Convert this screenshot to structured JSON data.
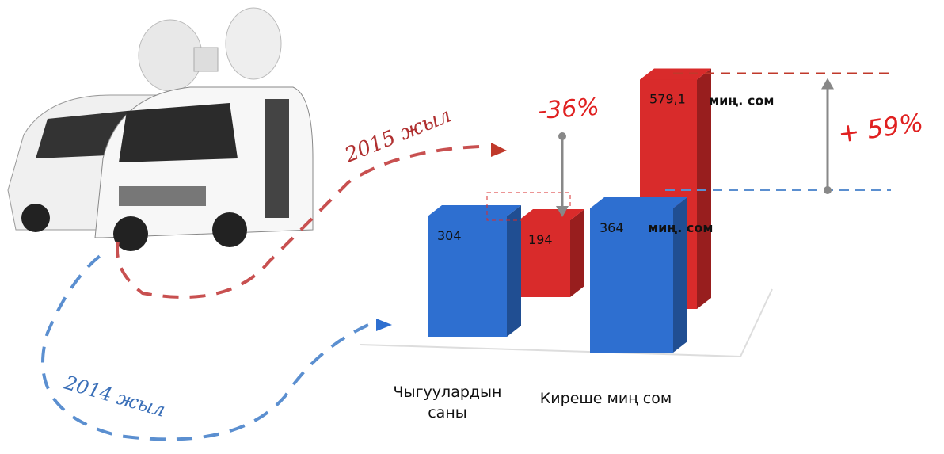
{
  "chart_data": {
    "type": "bar",
    "categories": [
      "Чыгуулардын саны",
      "Киреше миң сом"
    ],
    "series": [
      {
        "name": "2014 жыл",
        "color": "#2e6fd0",
        "values": [
          304,
          364
        ]
      },
      {
        "name": "2015 жыл",
        "color": "#d92b2b",
        "values": [
          194,
          579.1
        ],
        "value_labels": [
          "194",
          "579,1"
        ]
      }
    ],
    "annotations": [
      "-36%",
      "+ 59%",
      "миң. сом",
      "миң. сом"
    ]
  }
}
